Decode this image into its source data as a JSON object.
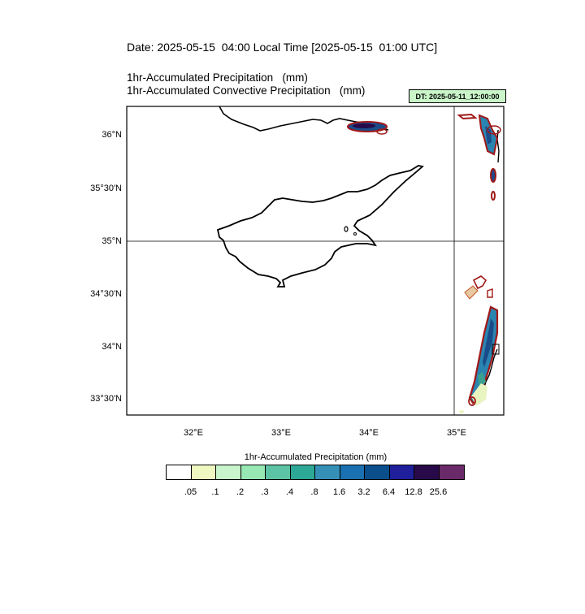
{
  "header": {
    "date_line": "Date: 2025-05-15  04:00 Local Time [2025-05-15  01:00 UTC]",
    "line1": "1hr-Accumulated Precipitation   (mm)",
    "line2": "1hr-Accumulated Convective Precipitation   (mm)",
    "dt_badge": "DT: 2025-05-11_12:00:00"
  },
  "axes": {
    "y_labels": [
      "36°N",
      "35°30'N",
      "35°N",
      "34°30'N",
      "34°N",
      "33°30'N"
    ],
    "x_labels": [
      "32°E",
      "33°E",
      "34°E",
      "35°E"
    ]
  },
  "colorbar": {
    "title": "1hr-Accumulated Precipitation  (mm)",
    "colors": [
      "#ffffff",
      "#eef8c0",
      "#c8f5cc",
      "#98e8b4",
      "#5cc4a4",
      "#2ea896",
      "#3590b8",
      "#1a70b0",
      "#0a4f8c",
      "#1f1f9c",
      "#280a4a",
      "#6a2a6a"
    ],
    "labels": [
      ".05",
      ".1",
      ".2",
      ".3",
      ".4",
      ".8",
      "1.6",
      "3.2",
      "6.4",
      "12.8",
      "25.6"
    ]
  },
  "colors": {
    "coast": "#000000",
    "contour": "#a01818",
    "gridline": "#000000"
  }
}
